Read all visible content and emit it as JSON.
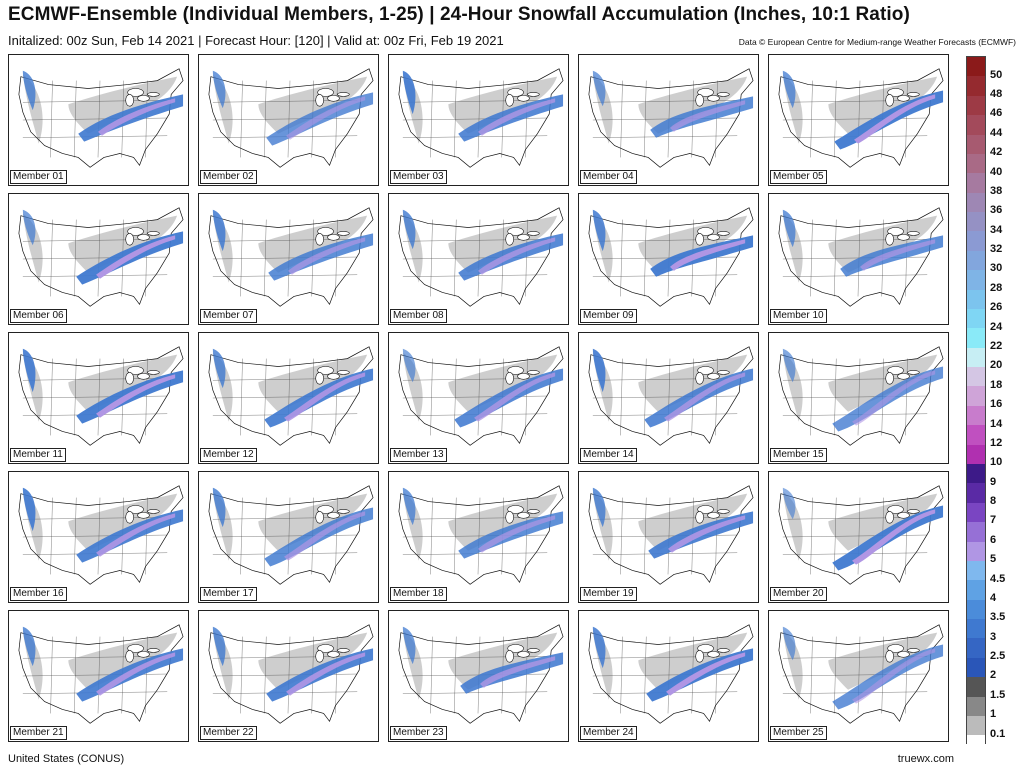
{
  "header": {
    "title": "ECMWF-Ensemble (Individual Members, 1-25) | 24-Hour Snowfall Accumulation (Inches, 10:1 Ratio)",
    "subtitle": "Initalized: 00z Sun, Feb 14 2021  |  Forecast Hour: [120]  |  Valid at: 00z Fri, Feb 19 2021",
    "credit": "Data © European Centre for Medium-range Weather Forecasts (ECMWF)"
  },
  "panels": [
    {
      "label": "Member 01",
      "t": 0.9,
      "s": 0.5,
      "w": 0.8
    },
    {
      "label": "Member 02",
      "t": 0.6,
      "s": 0.4,
      "w": 0.7
    },
    {
      "label": "Member 03",
      "t": 0.8,
      "s": 0.5,
      "w": 1.0
    },
    {
      "label": "Member 04",
      "t": 0.7,
      "s": 0.6,
      "w": 0.6
    },
    {
      "label": "Member 05",
      "t": 1.0,
      "s": 0.3,
      "w": 0.7
    },
    {
      "label": "Member 06",
      "t": 1.0,
      "s": 0.4,
      "w": 0.6
    },
    {
      "label": "Member 07",
      "t": 0.7,
      "s": 0.5,
      "w": 0.9
    },
    {
      "label": "Member 08",
      "t": 0.8,
      "s": 0.5,
      "w": 0.8
    },
    {
      "label": "Member 09",
      "t": 1.0,
      "s": 0.6,
      "w": 0.9
    },
    {
      "label": "Member 10",
      "t": 0.7,
      "s": 0.6,
      "w": 0.7
    },
    {
      "label": "Member 11",
      "t": 1.0,
      "s": 0.4,
      "w": 1.0
    },
    {
      "label": "Member 12",
      "t": 0.9,
      "s": 0.3,
      "w": 0.8
    },
    {
      "label": "Member 13",
      "t": 0.8,
      "s": 0.3,
      "w": 0.5
    },
    {
      "label": "Member 14",
      "t": 0.8,
      "s": 0.3,
      "w": 1.0
    },
    {
      "label": "Member 15",
      "t": 0.6,
      "s": 0.2,
      "w": 0.5
    },
    {
      "label": "Member 16",
      "t": 0.9,
      "s": 0.4,
      "w": 1.0
    },
    {
      "label": "Member 17",
      "t": 0.7,
      "s": 0.3,
      "w": 0.8
    },
    {
      "label": "Member 18",
      "t": 0.7,
      "s": 0.5,
      "w": 0.7
    },
    {
      "label": "Member 19",
      "t": 0.9,
      "s": 0.5,
      "w": 0.8
    },
    {
      "label": "Member 20",
      "t": 1.0,
      "s": 0.2,
      "w": 0.4
    },
    {
      "label": "Member 21",
      "t": 0.9,
      "s": 0.4,
      "w": 0.8
    },
    {
      "label": "Member 22",
      "t": 0.9,
      "s": 0.4,
      "w": 0.8
    },
    {
      "label": "Member 23",
      "t": 0.8,
      "s": 0.6,
      "w": 0.7
    },
    {
      "label": "Member 24",
      "t": 1.0,
      "s": 0.4,
      "w": 0.9
    },
    {
      "label": "Member 25",
      "t": 0.6,
      "s": 0.2,
      "w": 0.5
    }
  ],
  "legend": {
    "ticks": [
      "50",
      "48",
      "46",
      "44",
      "42",
      "40",
      "38",
      "36",
      "34",
      "32",
      "30",
      "28",
      "26",
      "24",
      "22",
      "20",
      "18",
      "16",
      "14",
      "12",
      "10",
      "9",
      "8",
      "7",
      "6",
      "5",
      "4.5",
      "4",
      "3.5",
      "3",
      "2.5",
      "2",
      "1.5",
      "1",
      "0.1"
    ],
    "colors": [
      "#8b1a1a",
      "#952a2f",
      "#9d3a45",
      "#a34a5b",
      "#a75a70",
      "#a96a86",
      "#a67aa0",
      "#9e87b4",
      "#9591c4",
      "#8b9ad3",
      "#82a6dd",
      "#7fb4e6",
      "#7cc4ee",
      "#7fd6f4",
      "#8aeaf8",
      "#c7eef4",
      "#d4c6e4",
      "#cfa4d8",
      "#c87ccc",
      "#c050c0",
      "#b030b0",
      "#3d1a88",
      "#5a2aa5",
      "#7a45c2",
      "#9670d6",
      "#b096e4",
      "#7fb8ee",
      "#5fa2e4",
      "#4b8cda",
      "#3f79d0",
      "#3566c4",
      "#2a56b8",
      "#555555",
      "#888888",
      "#bbbbbb"
    ]
  },
  "footer": {
    "left": "United States (CONUS)",
    "right": "truewx.com"
  }
}
